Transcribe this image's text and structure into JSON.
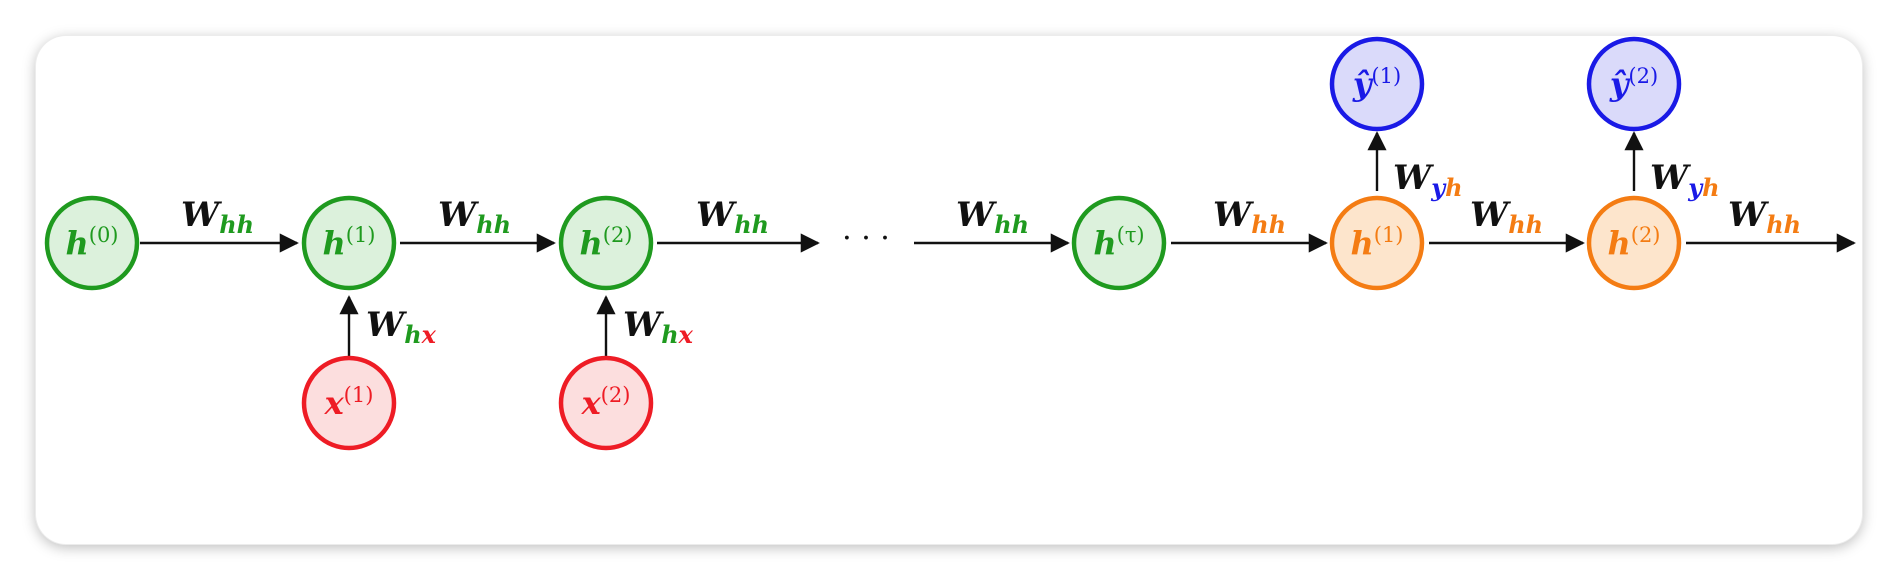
{
  "colors": {
    "green": "#1f9a1f",
    "green_fill": "#dcf1dc",
    "red": "#ee1c25",
    "red_fill": "#fcdede",
    "orange": "#f47c13",
    "orange_fill": "#fde5cc",
    "blue": "#1a1ae6",
    "blue_fill": "#dadafa",
    "edge": "#111111"
  },
  "nodes": {
    "h0": {
      "base": "h",
      "sup": "(0)"
    },
    "h1": {
      "base": "h",
      "sup": "(1)"
    },
    "h2": {
      "base": "h",
      "sup": "(2)"
    },
    "x1": {
      "base": "x",
      "sup": "(1)"
    },
    "x2": {
      "base": "x",
      "sup": "(2)"
    },
    "htau": {
      "base": "h",
      "sup": "(τ)"
    },
    "hd1": {
      "base": "h",
      "sup": "(1)"
    },
    "hd2": {
      "base": "h",
      "sup": "(2)"
    },
    "y1": {
      "base": "ŷ",
      "sup": "(1)"
    },
    "y2": {
      "base": "ŷ",
      "sup": "(2)"
    }
  },
  "edges": {
    "weight_letter": "W",
    "enc_hh": {
      "a": "h",
      "b": "h"
    },
    "enc_hx": {
      "a": "h",
      "b": "x"
    },
    "dec_hh": {
      "a": "h",
      "b": "h"
    },
    "dec_yh": {
      "a": "y",
      "b": "h"
    }
  },
  "ellipsis": "· · ·"
}
